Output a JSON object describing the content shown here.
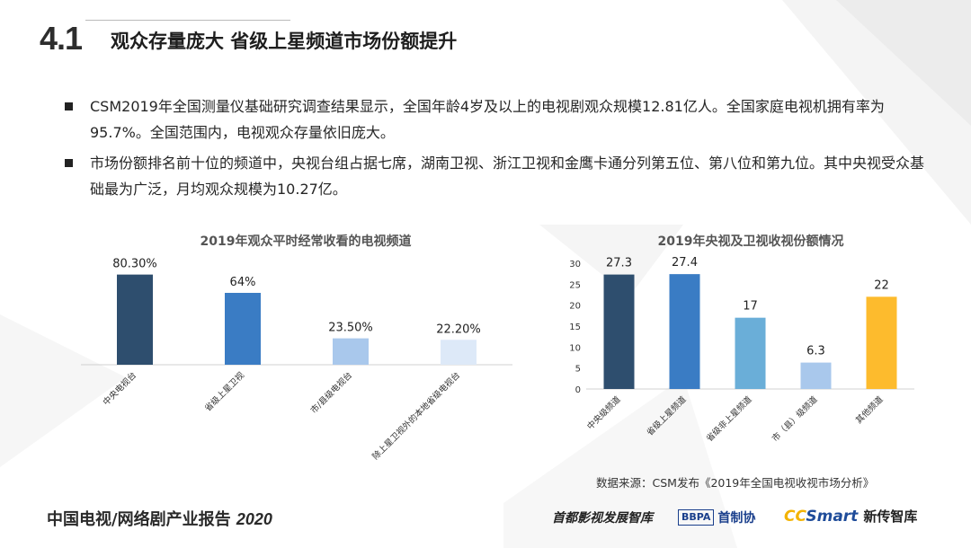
{
  "header": {
    "section_number": "4.1",
    "title": "观众存量庞大 省级上星频道市场份额提升"
  },
  "bullets": [
    "CSM2019年全国测量仪基础研究调查结果显示，全国年龄4岁及以上的电视剧观众规模12.81亿人。全国家庭电视机拥有率为95.7%。全国范围内，电视观众存量依旧庞大。",
    "市场份额排名前十位的频道中，央视台组占据七席，湖南卫视、浙江卫视和金鹰卡通分列第五位、第八位和第九位。其中央视受众基础最为广泛，月均观众规模为10.27亿。"
  ],
  "chart_data": [
    {
      "type": "bar",
      "title": "2019年观众平时经常收看的电视频道",
      "categories": [
        "中央电视台",
        "省级上星卫视",
        "市/县级电视台",
        "除上星卫视外的本地省级电视台"
      ],
      "values": [
        80.3,
        64,
        23.5,
        22.2
      ],
      "value_labels": [
        "80.30%",
        "64%",
        "23.50%",
        "22.20%"
      ],
      "colors": [
        "#2e4e6e",
        "#3a7cc4",
        "#a9c8ec",
        "#dde9f8"
      ],
      "ylim": [
        0,
        100
      ],
      "grid": false
    },
    {
      "type": "bar",
      "title": "2019年央视及卫视收视份额情况",
      "categories": [
        "中央级频道",
        "省级上星频道",
        "省级非上星频道",
        "市（县）级频道",
        "其他频道"
      ],
      "values": [
        27.3,
        27.4,
        17,
        6.3,
        22
      ],
      "value_labels": [
        "27.3",
        "27.4",
        "17",
        "6.3",
        "22"
      ],
      "colors": [
        "#2e4e6e",
        "#3a7cc4",
        "#6aaed8",
        "#a9c8ec",
        "#fdbb2d"
      ],
      "y_ticks": [
        "0",
        "5",
        "10",
        "15",
        "20",
        "25",
        "30"
      ],
      "ylim": [
        0,
        30
      ],
      "grid": false
    }
  ],
  "source_note": "数据来源：CSM发布《2019年全国电视收视市场分析》",
  "footer": {
    "title": "中国电视/网络剧产业报告",
    "year": "2020"
  },
  "logos": {
    "shoudu": "首都影视发展智库",
    "bbpa_box": "BBPA",
    "bbpa_text": "首制协",
    "ccs_cc": "CC",
    "ccs_smart": "Smart",
    "ccs_xin": "新传智库"
  }
}
